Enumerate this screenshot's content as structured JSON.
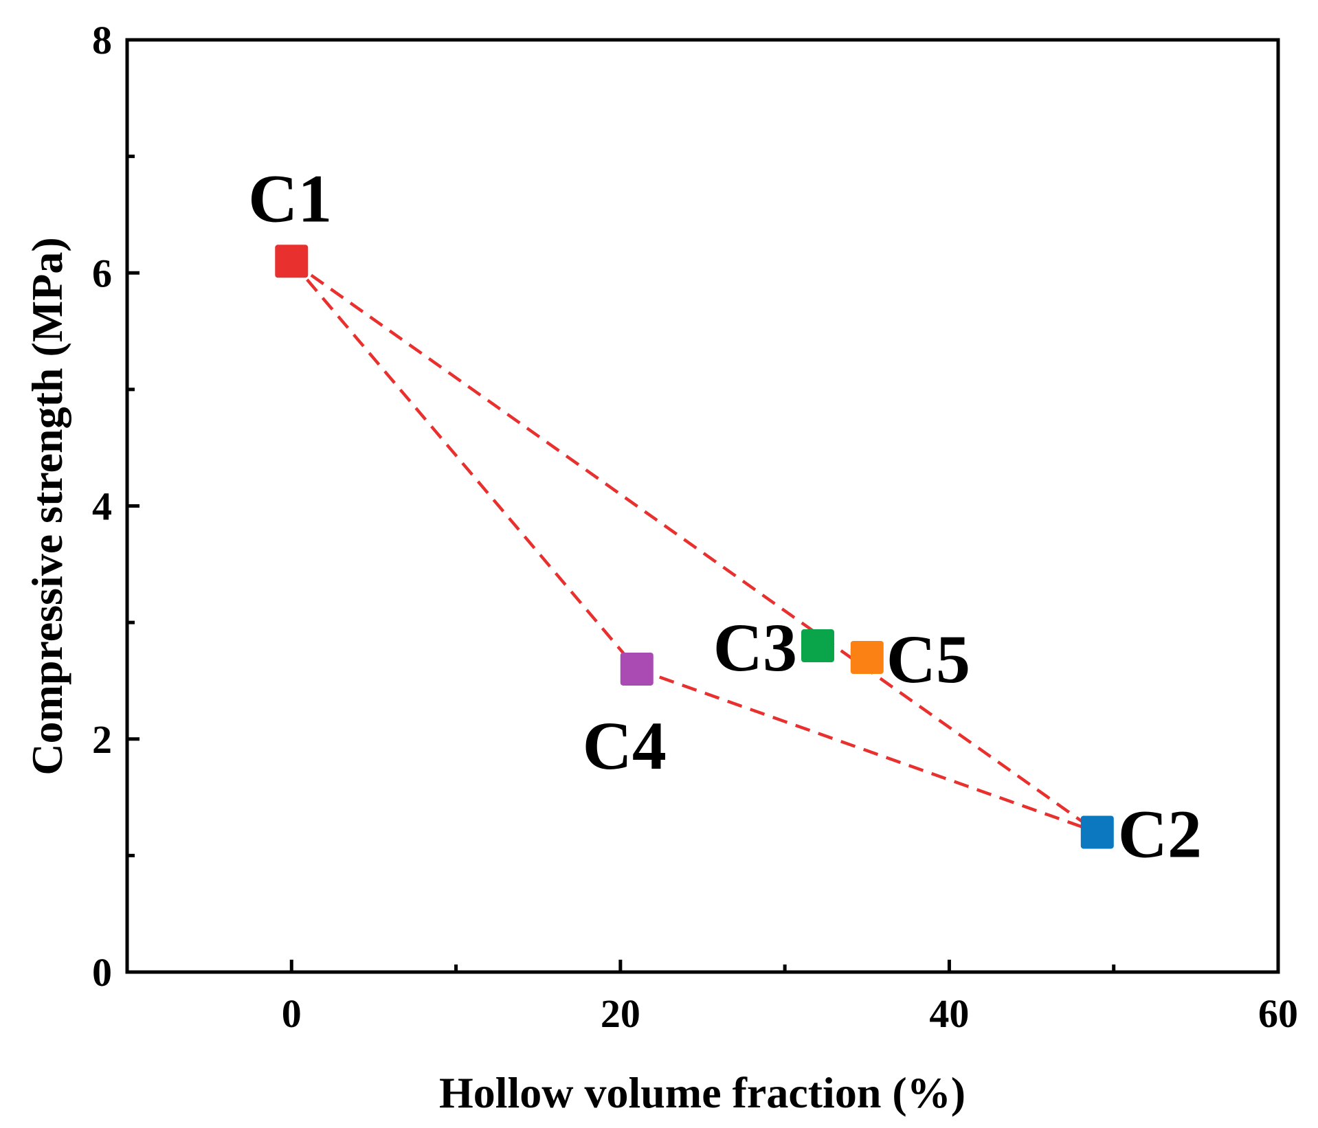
{
  "chart_data": {
    "type": "scatter",
    "title": "",
    "xlabel": "Hollow volume fraction (%)",
    "ylabel": "Compressive strength (MPa)",
    "xlim": [
      -10,
      60
    ],
    "ylim": [
      0,
      8
    ],
    "x_major_ticks": [
      0,
      20,
      40,
      60
    ],
    "x_minor_ticks": [
      10,
      30,
      50
    ],
    "y_major_ticks": [
      0,
      2,
      4,
      6,
      8
    ],
    "y_minor_ticks": [
      1,
      3,
      5,
      7
    ],
    "grid": false,
    "points": [
      {
        "label": "C1",
        "x": 0,
        "y": 6.1,
        "color": "#e8312f"
      },
      {
        "label": "C2",
        "x": 49,
        "y": 1.2,
        "color": "#0b78c0"
      },
      {
        "label": "C3",
        "x": 32,
        "y": 2.8,
        "color": "#0aa54a"
      },
      {
        "label": "C4",
        "x": 21,
        "y": 2.6,
        "color": "#a94bb3"
      },
      {
        "label": "C5",
        "x": 35,
        "y": 2.7,
        "color": "#fb8114"
      }
    ],
    "trend_lines": [
      {
        "from": "C1",
        "to": "C2",
        "style": "dashed",
        "color": "#e8312f"
      },
      {
        "from": "C1",
        "to": "C4",
        "style": "dashed",
        "color": "#e8312f"
      },
      {
        "from": "C4",
        "to": "C2",
        "style": "dashed",
        "color": "#e8312f"
      }
    ]
  }
}
